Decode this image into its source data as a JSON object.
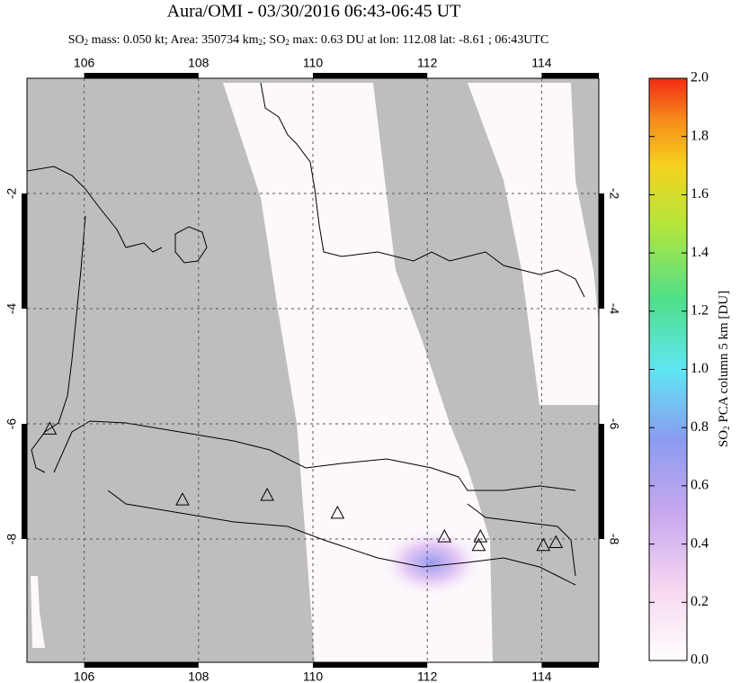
{
  "title": "Aura/OMI - 03/30/2016 06:43-06:45 UT",
  "subtitle_parts": [
    "SO",
    "2",
    " mass: 0.050 kt; Area: 350734 km",
    "2",
    "; SO",
    "2",
    " max: 0.63 DU at lon: 112.08 lat: -8.61 ; 06:43UTC"
  ],
  "map": {
    "xlim": [
      105,
      115
    ],
    "ylim": [
      -10.14,
      0
    ],
    "xticks": [
      106,
      108,
      110,
      112,
      114
    ],
    "yticks": [
      -2,
      -4,
      -6,
      -8
    ],
    "volcanoes": {
      "lon": [
        105.4,
        107.72,
        109.2,
        110.43,
        112.3,
        112.93,
        112.9,
        114.03,
        114.25
      ],
      "lat": [
        -6.1,
        -7.33,
        -7.25,
        -7.56,
        -7.97,
        -7.97,
        -8.12,
        -8.12,
        -8.07
      ]
    }
  },
  "colorbar": {
    "lim": [
      0,
      2
    ],
    "ticks": [
      {
        "value": 0,
        "label": "0.0"
      },
      {
        "value": 0.2,
        "label": "0.2"
      },
      {
        "value": 0.4,
        "label": "0.4"
      },
      {
        "value": 0.6,
        "label": "0.6"
      },
      {
        "value": 0.8,
        "label": "0.8"
      },
      {
        "value": 1,
        "label": "1.0"
      },
      {
        "value": 1.2,
        "label": "1.2"
      },
      {
        "value": 1.4,
        "label": "1.4"
      },
      {
        "value": 1.6,
        "label": "1.6"
      },
      {
        "value": 1.8,
        "label": "1.8"
      },
      {
        "value": 2,
        "label": "2.0"
      }
    ],
    "label_parts": [
      "SO",
      "2",
      " PCA column 5 km [DU]"
    ]
  }
}
